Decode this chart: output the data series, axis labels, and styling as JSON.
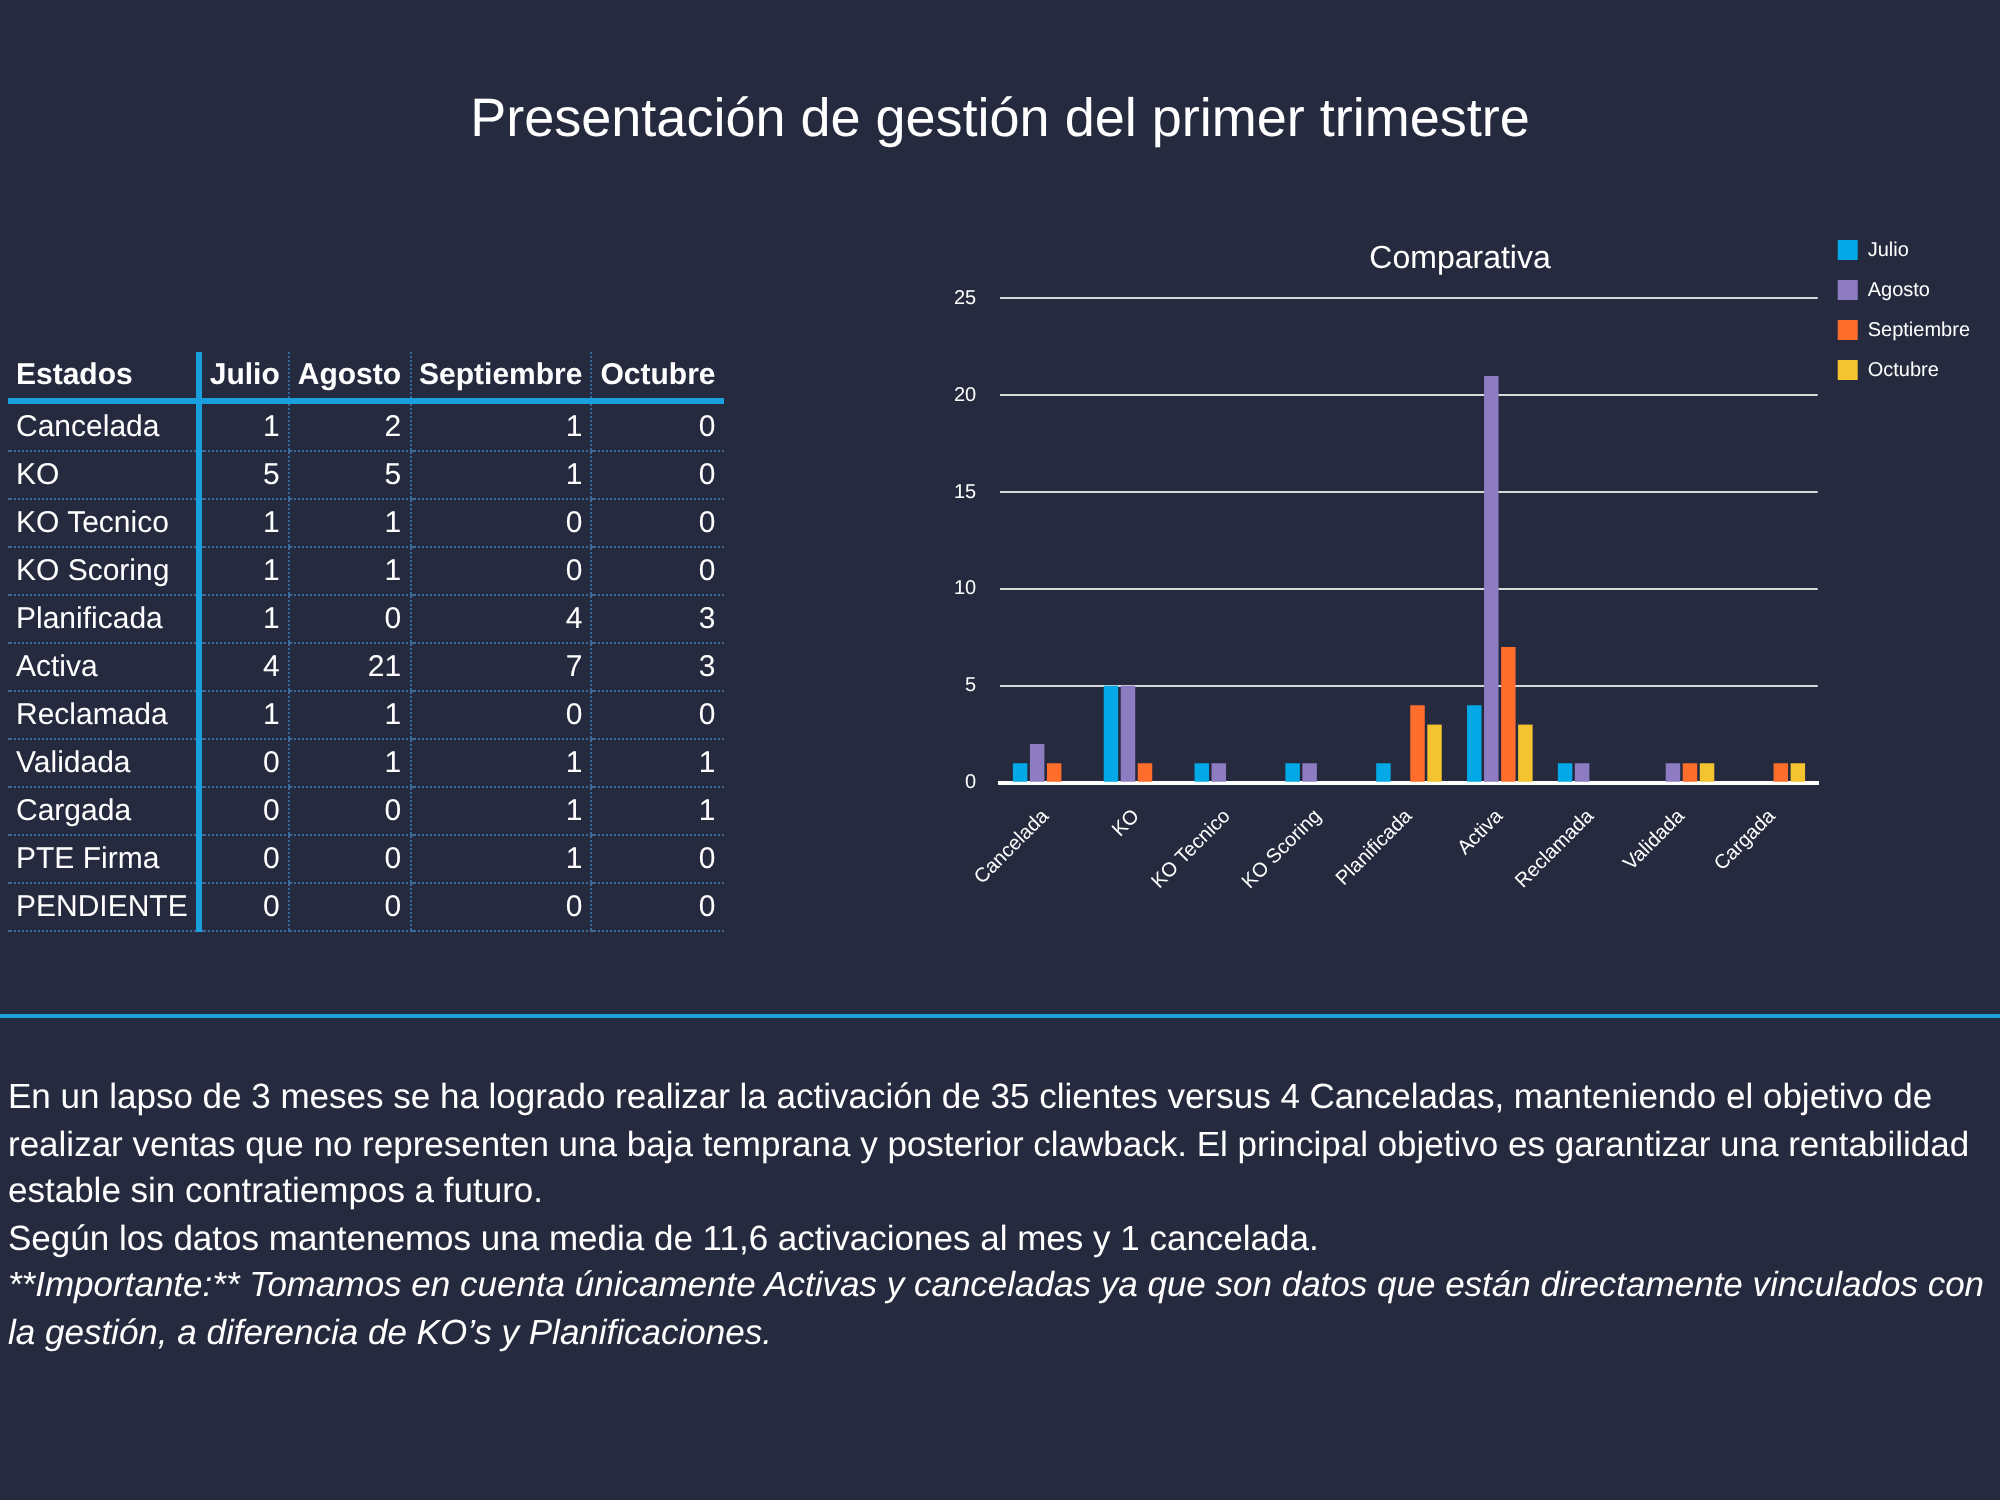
{
  "chart_data": [
    {
      "type": "other",
      "title": "Presentación de gestión del primer trimestre",
      "xlabel": "Estados",
      "data_labels": true,
      "categories": [
        "Cancelada",
        "KO",
        "KO Tecnico",
        "KO Scoring",
        "Planificada",
        "Activa",
        "Reclamada",
        "Validada",
        "Cargada",
        "PTE Firma",
        "PENDIENTE"
      ],
      "series": [
        {
          "name": "Julio",
          "values": [
            1,
            5,
            1,
            1,
            1,
            4,
            1,
            0,
            0,
            0,
            0
          ]
        },
        {
          "name": "Agosto",
          "values": [
            2,
            5,
            1,
            1,
            0,
            21,
            1,
            1,
            0,
            0,
            0
          ]
        },
        {
          "name": "Septiembre",
          "values": [
            1,
            1,
            0,
            0,
            4,
            7,
            0,
            1,
            1,
            1,
            0
          ]
        },
        {
          "name": "Octubre",
          "values": [
            0,
            0,
            0,
            0,
            3,
            3,
            0,
            1,
            1,
            0,
            0
          ]
        }
      ],
      "annotations": [
        "En un lapso de 3 meses se ha logrado realizar la activación de 35 clientes versus 4 Canceladas, manteniendo el objetivo de realizar ventas que no representen una baja temprana y posterior clawback. El principal objetivo es garantizar una rentabilidad estable sin contratiempos a futuro.",
        "Según los datos mantenemos una media de 11,6 activaciones al mes y 1 cancelada.",
        "**Importante:** Tomamos en cuenta únicamente Activas y canceladas ya que son datos que están directamente vinculados con la gestión, a diferencia de KO’s y Planificaciones."
      ]
    },
    {
      "type": "bar",
      "title": "Comparativa",
      "categories": [
        "Cancelada",
        "KO",
        "KO Tecnico",
        "KO Scoring",
        "Planificada",
        "Activa",
        "Reclamada",
        "Validada",
        "Cargada"
      ],
      "series": [
        {
          "name": "Julio",
          "color": "#03a9e6",
          "values": [
            1,
            5,
            1,
            1,
            1,
            4,
            1,
            0,
            0
          ]
        },
        {
          "name": "Agosto",
          "color": "#8e7cc3",
          "values": [
            2,
            5,
            1,
            1,
            0,
            21,
            1,
            1,
            0
          ]
        },
        {
          "name": "Septiembre",
          "color": "#ff6d2d",
          "values": [
            1,
            1,
            0,
            0,
            4,
            7,
            0,
            1,
            1
          ]
        },
        {
          "name": "Octubre",
          "color": "#f4c430",
          "values": [
            0,
            0,
            0,
            0,
            3,
            3,
            0,
            1,
            1
          ]
        }
      ],
      "ylim": [
        0,
        25
      ],
      "yticks": [
        0,
        5,
        10,
        15,
        20,
        25
      ],
      "grid": "y",
      "legend": "right"
    }
  ]
}
